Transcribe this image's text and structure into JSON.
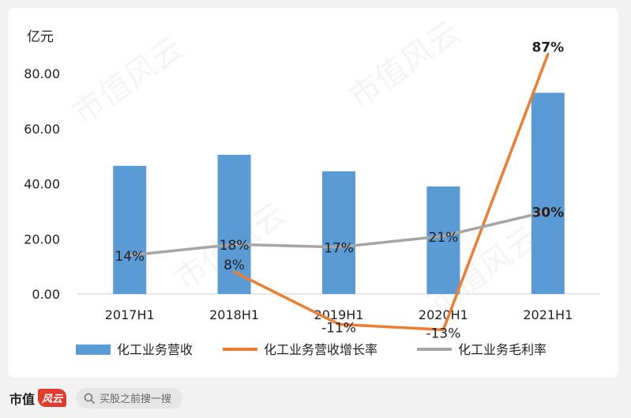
{
  "chart_data": {
    "type": "bar",
    "unit_label": "亿元",
    "categories": [
      "2017H1",
      "2018H1",
      "2019H1",
      "2020H1",
      "2021H1"
    ],
    "ylim": [
      0,
      80
    ],
    "yticks": [
      "0.00",
      "20.00",
      "40.00",
      "60.00",
      "80.00"
    ],
    "bar_series": {
      "name": "化工业务营收",
      "color": "#5b9bd5",
      "values": [
        46.5,
        50.5,
        44.5,
        39.0,
        73.0
      ]
    },
    "line_series": [
      {
        "name": "化工业务营收增长率",
        "color": "#ed7d31",
        "values": [
          null,
          8,
          -11,
          -13,
          87
        ],
        "labels": [
          "",
          "8%",
          "-11%",
          "-13%",
          "87%"
        ],
        "label_bold": [
          false,
          false,
          false,
          false,
          true
        ]
      },
      {
        "name": "化工业务毛利率",
        "color": "#a5a5a5",
        "values": [
          14,
          18,
          17,
          21,
          30
        ],
        "labels": [
          "14%",
          "18%",
          "17%",
          "21%",
          "30%"
        ],
        "label_bold": [
          false,
          false,
          false,
          false,
          true
        ]
      }
    ],
    "legend_position": "bottom",
    "grid": false
  },
  "watermark": "市值风云",
  "footer": {
    "brand": "市值",
    "brand_badge": "风云",
    "search_placeholder": "买股之前搜一搜"
  }
}
